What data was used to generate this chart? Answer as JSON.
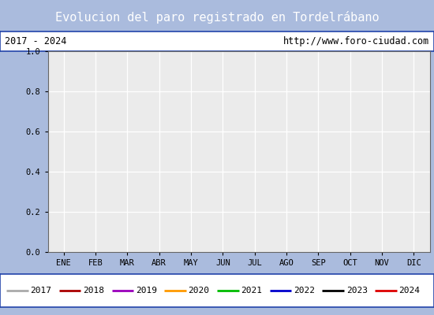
{
  "title": "Evolucion del paro registrado en Tordelrábano",
  "title_bg_color": "#5588dd",
  "title_text_color": "#ffffff",
  "subtitle_left": "2017 - 2024",
  "subtitle_right": "http://www.foro-ciudad.com",
  "subtitle_bg_color": "#ffffff",
  "subtitle_text_color": "#000000",
  "ylim": [
    0.0,
    1.0
  ],
  "yticks": [
    0.0,
    0.2,
    0.4,
    0.6,
    0.8,
    1.0
  ],
  "months": [
    "ENE",
    "FEB",
    "MAR",
    "ABR",
    "MAY",
    "JUN",
    "JUL",
    "AGO",
    "SEP",
    "OCT",
    "NOV",
    "DIC"
  ],
  "x_positions": [
    1,
    2,
    3,
    4,
    5,
    6,
    7,
    8,
    9,
    10,
    11,
    12
  ],
  "plot_bg_color": "#ebebeb",
  "grid_color": "#ffffff",
  "legend_entries": [
    {
      "label": "2017",
      "color": "#aaaaaa",
      "linewidth": 2.0
    },
    {
      "label": "2018",
      "color": "#aa0000",
      "linewidth": 2.0
    },
    {
      "label": "2019",
      "color": "#9900bb",
      "linewidth": 2.0
    },
    {
      "label": "2020",
      "color": "#ff9900",
      "linewidth": 2.0
    },
    {
      "label": "2021",
      "color": "#00bb00",
      "linewidth": 2.0
    },
    {
      "label": "2022",
      "color": "#0000cc",
      "linewidth": 2.0
    },
    {
      "label": "2023",
      "color": "#000000",
      "linewidth": 2.0
    },
    {
      "label": "2024",
      "color": "#dd0000",
      "linewidth": 2.0
    }
  ],
  "border_color": "#2244aa",
  "fig_bg_color": "#aabbdd",
  "font_family": "DejaVu Sans Mono"
}
